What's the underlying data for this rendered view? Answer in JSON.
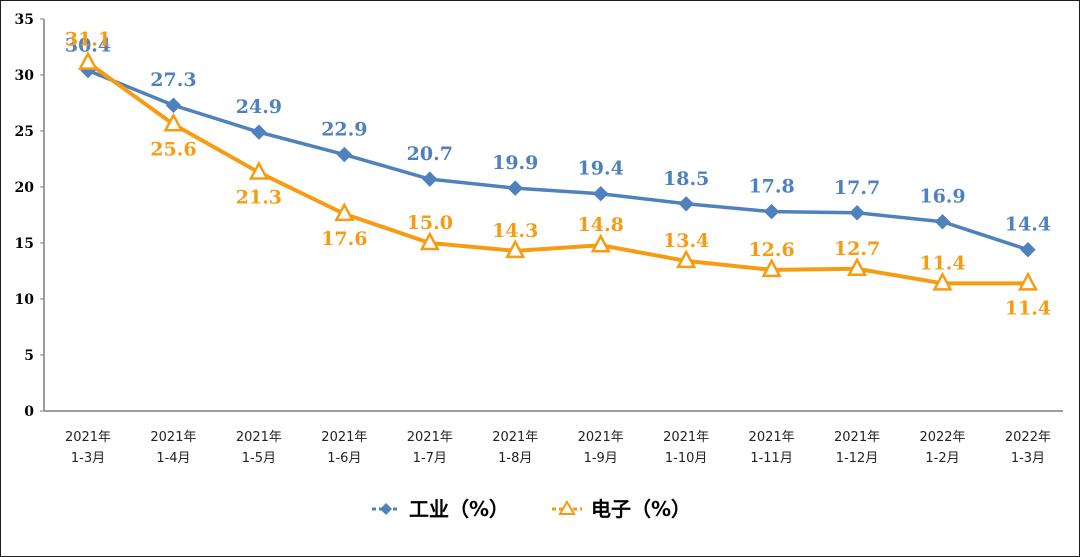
{
  "chart_data": {
    "type": "line",
    "categories": [
      [
        "2021年",
        "1-3月"
      ],
      [
        "2021年",
        "1-4月"
      ],
      [
        "2021年",
        "1-5月"
      ],
      [
        "2021年",
        "1-6月"
      ],
      [
        "2021年",
        "1-7月"
      ],
      [
        "2021年",
        "1-8月"
      ],
      [
        "2021年",
        "1-9月"
      ],
      [
        "2021年",
        "1-10月"
      ],
      [
        "2021年",
        "1-11月"
      ],
      [
        "2021年",
        "1-12月"
      ],
      [
        "2022年",
        "1-2月"
      ],
      [
        "2022年",
        "1-3月"
      ]
    ],
    "ylim": [
      0,
      35
    ],
    "yticks": [
      0,
      5,
      10,
      15,
      20,
      25,
      30,
      35
    ],
    "grid": false,
    "legend_position": "bottom-center",
    "series": [
      {
        "name": "工业（%）",
        "values": [
          30.4,
          27.3,
          24.9,
          22.9,
          20.7,
          19.9,
          19.4,
          18.5,
          17.8,
          17.7,
          16.9,
          14.4
        ],
        "labels": [
          "30.4",
          "27.3",
          "24.9",
          "22.9",
          "20.7",
          "19.9",
          "19.4",
          "18.5",
          "17.8",
          "17.7",
          "16.9",
          "14.4"
        ],
        "color": "#4F81BD",
        "marker": "diamond"
      },
      {
        "name": "电子（%）",
        "values": [
          31.1,
          25.6,
          21.3,
          17.6,
          15.0,
          14.3,
          14.8,
          13.4,
          12.6,
          12.7,
          11.4,
          11.4
        ],
        "labels": [
          "31.1",
          "25.6",
          "21.3",
          "17.6",
          "15.0",
          "14.3",
          "14.8",
          "13.4",
          "12.6",
          "12.7",
          "11.4",
          "11.4"
        ],
        "color": "#F79C12",
        "marker": "triangle"
      }
    ]
  }
}
